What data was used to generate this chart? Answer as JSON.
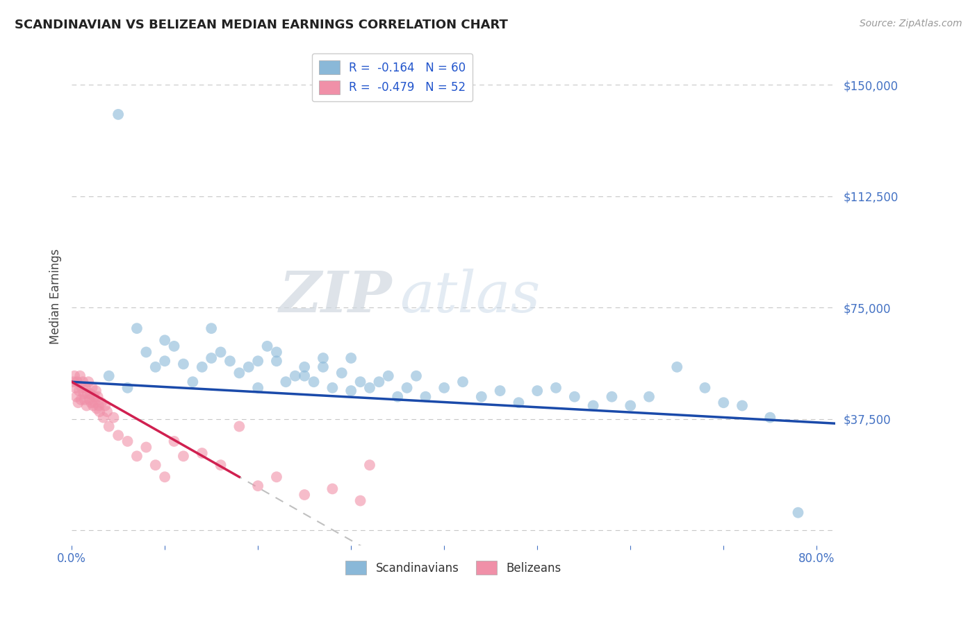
{
  "title": "SCANDINAVIAN VS BELIZEAN MEDIAN EARNINGS CORRELATION CHART",
  "source_text": "Source: ZipAtlas.com",
  "ylabel_text": "Median Earnings",
  "legend_entry_blue": "R =  -0.164   N = 60",
  "legend_entry_pink": "R =  -0.479   N = 52",
  "legend_label_scandinavians": "Scandinavians",
  "legend_label_belizeans": "Belizeans",
  "xlim": [
    0.0,
    0.82
  ],
  "ylim": [
    -5000,
    162500
  ],
  "yticks": [
    0,
    37500,
    75000,
    112500,
    150000
  ],
  "ytick_labels": [
    "",
    "$37,500",
    "$75,000",
    "$112,500",
    "$150,000"
  ],
  "xticks": [
    0.0,
    0.1,
    0.2,
    0.3,
    0.4,
    0.5,
    0.6,
    0.7,
    0.8
  ],
  "xtick_labels": [
    "0.0%",
    "",
    "",
    "",
    "",
    "",
    "",
    "",
    "80.0%"
  ],
  "title_color": "#222222",
  "tick_color": "#4472c4",
  "grid_color": "#c8c8c8",
  "background_color": "#ffffff",
  "scatter_blue_color": "#8ab8d8",
  "scatter_pink_color": "#f090a8",
  "line_blue_color": "#1a4aaa",
  "line_pink_color": "#d02050",
  "line_dashed_color": "#c0c0c0",
  "watermark_zip": "ZIP",
  "watermark_atlas": "atlas",
  "blue_line_x0": 0.0,
  "blue_line_y0": 50000,
  "blue_line_x1": 0.82,
  "blue_line_y1": 36000,
  "pink_line_x0": 0.0,
  "pink_line_y0": 50000,
  "pink_line_x1": 0.18,
  "pink_line_y1": 18000,
  "dashed_line_x0": 0.1,
  "dashed_line_x1": 0.45,
  "blue_scatter_x": [
    0.05,
    0.04,
    0.07,
    0.09,
    0.06,
    0.1,
    0.08,
    0.12,
    0.11,
    0.13,
    0.1,
    0.14,
    0.15,
    0.16,
    0.17,
    0.18,
    0.15,
    0.19,
    0.2,
    0.21,
    0.2,
    0.22,
    0.23,
    0.24,
    0.22,
    0.25,
    0.26,
    0.27,
    0.25,
    0.28,
    0.29,
    0.27,
    0.3,
    0.31,
    0.3,
    0.32,
    0.33,
    0.34,
    0.35,
    0.36,
    0.37,
    0.38,
    0.4,
    0.42,
    0.44,
    0.46,
    0.48,
    0.5,
    0.52,
    0.54,
    0.56,
    0.58,
    0.6,
    0.62,
    0.65,
    0.68,
    0.7,
    0.72,
    0.75,
    0.78
  ],
  "blue_scatter_y": [
    140000,
    52000,
    68000,
    55000,
    48000,
    57000,
    60000,
    56000,
    62000,
    50000,
    64000,
    55000,
    58000,
    60000,
    57000,
    53000,
    68000,
    55000,
    57000,
    62000,
    48000,
    57000,
    50000,
    52000,
    60000,
    55000,
    50000,
    58000,
    52000,
    48000,
    53000,
    55000,
    47000,
    50000,
    58000,
    48000,
    50000,
    52000,
    45000,
    48000,
    52000,
    45000,
    48000,
    50000,
    45000,
    47000,
    43000,
    47000,
    48000,
    45000,
    42000,
    45000,
    42000,
    45000,
    55000,
    48000,
    43000,
    42000,
    38000,
    6000
  ],
  "pink_scatter_x": [
    0.002,
    0.003,
    0.004,
    0.005,
    0.006,
    0.007,
    0.008,
    0.009,
    0.01,
    0.011,
    0.012,
    0.013,
    0.014,
    0.015,
    0.016,
    0.017,
    0.018,
    0.019,
    0.02,
    0.021,
    0.022,
    0.023,
    0.024,
    0.025,
    0.026,
    0.027,
    0.028,
    0.029,
    0.03,
    0.032,
    0.034,
    0.036,
    0.038,
    0.04,
    0.045,
    0.05,
    0.06,
    0.07,
    0.08,
    0.09,
    0.1,
    0.11,
    0.12,
    0.14,
    0.16,
    0.18,
    0.2,
    0.22,
    0.25,
    0.28,
    0.31,
    0.32
  ],
  "pink_scatter_y": [
    50000,
    52000,
    48000,
    45000,
    50000,
    43000,
    47000,
    52000,
    44000,
    48000,
    50000,
    46000,
    44000,
    48000,
    42000,
    46000,
    50000,
    44000,
    46000,
    43000,
    48000,
    42000,
    45000,
    43000,
    47000,
    41000,
    45000,
    42000,
    40000,
    43000,
    38000,
    42000,
    40000,
    35000,
    38000,
    32000,
    30000,
    25000,
    28000,
    22000,
    18000,
    30000,
    25000,
    26000,
    22000,
    35000,
    15000,
    18000,
    12000,
    14000,
    10000,
    22000
  ]
}
